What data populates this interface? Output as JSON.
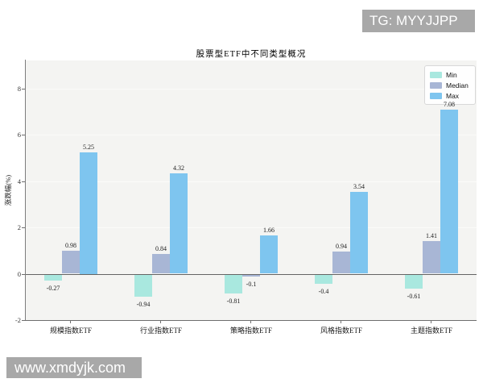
{
  "watermarks": {
    "top_right": "TG: MYYJJPP",
    "bottom_left": "www.xmdyjk.com"
  },
  "colors": {
    "min_series": "#a9e8df",
    "median_series": "#a8b6d5",
    "max_series": "#7ec5ef",
    "plot_background": "#f4f4f2",
    "gridline": "#fbfbf9",
    "axis": "#6e6e6e",
    "watermark_background": "#a8a8a8",
    "watermark_text": "#ffffff"
  },
  "chart_data": {
    "type": "bar",
    "title": "股票型ETF中不同类型概况",
    "xlabel": "",
    "ylabel": "涨跌幅(%)",
    "categories": [
      "规模指数ETF",
      "行业指数ETF",
      "策略指数ETF",
      "风格指数ETF",
      "主题指数ETF"
    ],
    "series": [
      {
        "name": "Min",
        "color": "#a9e8df",
        "values": [
          -0.27,
          -0.94,
          -0.81,
          -0.4,
          -0.61
        ]
      },
      {
        "name": "Median",
        "color": "#a8b6d5",
        "values": [
          0.98,
          0.84,
          -0.1,
          0.94,
          1.41
        ]
      },
      {
        "name": "Max",
        "color": "#7ec5ef",
        "values": [
          5.25,
          4.32,
          1.66,
          3.54,
          7.08
        ]
      }
    ],
    "yticks": [
      8,
      6,
      4,
      2,
      0,
      -2
    ],
    "ylim": [
      -2,
      9.2
    ],
    "grid": true,
    "legend_position": "top-right",
    "bar_value_labels": true
  }
}
